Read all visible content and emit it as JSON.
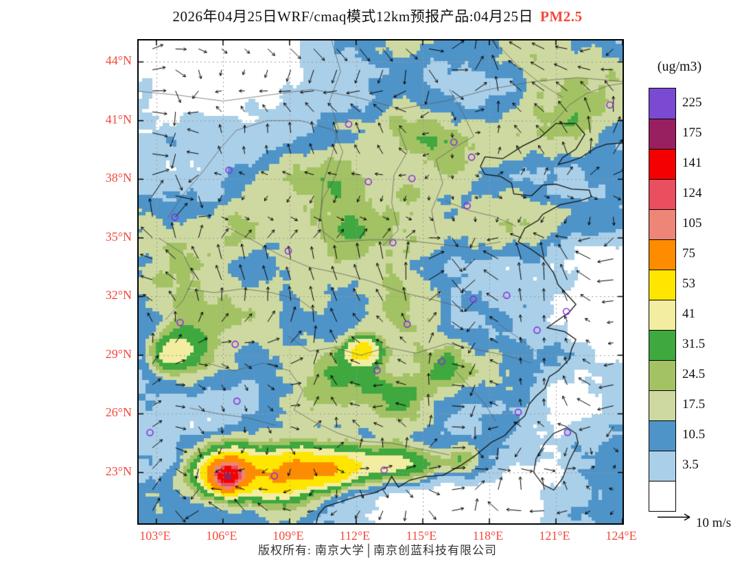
{
  "title": {
    "prefix": "2026年04月25日WRF/cmaq模式12km预报产品:04月25日",
    "species": "PM2.5"
  },
  "colors": {
    "accent_red": "#f4483c",
    "marker": "#8b2be2",
    "coastline": "#111111",
    "border_line": "#555555",
    "gridline": "#999999"
  },
  "legend": {
    "units_label": "(ug/m3)",
    "tick_values": [
      "225",
      "175",
      "141",
      "124",
      "105",
      "75",
      "53",
      "41",
      "31.5",
      "24.5",
      "17.5",
      "10.5",
      "3.5"
    ],
    "band_colors_top_to_bottom": [
      "#7a4bd2",
      "#992060",
      "#f50000",
      "#ea4f5f",
      "#ee8576",
      "#ff8c00",
      "#ffe600",
      "#f2eda0",
      "#3fa83f",
      "#a3c264",
      "#cdd9a0",
      "#4f94c8",
      "#aacfe8",
      "#ffffff"
    ]
  },
  "axes": {
    "lat_tick_labels": [
      "44°N",
      "41°N",
      "38°N",
      "35°N",
      "32°N",
      "29°N",
      "26°N",
      "23°N"
    ],
    "lat_tick_values": [
      44,
      41,
      38,
      35,
      32,
      29,
      26,
      23
    ],
    "lon_tick_labels": [
      "103°E",
      "106°E",
      "109°E",
      "112°E",
      "115°E",
      "118°E",
      "121°E",
      "124°E"
    ],
    "lon_tick_values": [
      103,
      106,
      109,
      112,
      115,
      118,
      121,
      124
    ]
  },
  "wind_legend": {
    "label": "10 m/s"
  },
  "footer": {
    "text": "版权所有: 南京大学│南京创蓝科技有限公司"
  },
  "chart_data": {
    "type": "heatmap",
    "variable": "PM2.5",
    "units": "ug/m3",
    "model": "WRF/cmaq 12km",
    "forecast_date": "2026-04-25",
    "legend_position": "right",
    "lon_range": [
      102.2,
      124.0
    ],
    "lat_range": [
      20.4,
      45.1
    ],
    "levels": [
      3.5,
      10.5,
      17.5,
      24.5,
      31.5,
      41,
      53,
      75,
      105,
      124,
      141,
      175,
      225
    ],
    "reference_vector": {
      "speed": 10,
      "units": "m/s"
    },
    "hotspots": [
      [
        106.2,
        22.8,
        110,
        0.5
      ],
      [
        106.8,
        23.2,
        45,
        0.9
      ],
      [
        105.4,
        23.0,
        35,
        0.8
      ],
      [
        108.1,
        22.4,
        30,
        0.8
      ],
      [
        109.3,
        23.2,
        60,
        0.8
      ],
      [
        110.8,
        23.1,
        45,
        0.7
      ],
      [
        112.0,
        23.4,
        40,
        0.8
      ],
      [
        113.6,
        23.4,
        30,
        0.7
      ],
      [
        115.0,
        23.3,
        22,
        0.7
      ],
      [
        116.8,
        23.6,
        26,
        0.6
      ],
      [
        112.3,
        29.3,
        40,
        0.55
      ],
      [
        111.5,
        27.5,
        16,
        1.2
      ],
      [
        113.8,
        27.0,
        14,
        1.0
      ],
      [
        115.8,
        28.3,
        15,
        0.9
      ],
      [
        104.3,
        29.5,
        20,
        0.9
      ],
      [
        103.4,
        29.0,
        24,
        0.6
      ],
      [
        105.5,
        31.0,
        12,
        1.2
      ],
      [
        112.0,
        34.5,
        10,
        2.2
      ],
      [
        110.0,
        37.0,
        12,
        2.0
      ],
      [
        117.0,
        36.5,
        10,
        2.0
      ],
      [
        113.5,
        31.5,
        8,
        1.8
      ],
      [
        122.5,
        41.5,
        12,
        1.8
      ],
      [
        120.0,
        43.5,
        10,
        1.6
      ],
      [
        116.5,
        39.5,
        12,
        1.2
      ],
      [
        114.8,
        40.6,
        8,
        1.2
      ],
      [
        104.5,
        34.0,
        12,
        1.5
      ],
      [
        103.2,
        33.0,
        10,
        1.2
      ],
      [
        121.0,
        35.8,
        8,
        1.3
      ],
      [
        102.8,
        43.8,
        -16,
        2.8
      ],
      [
        106.5,
        44.5,
        -10,
        2.2
      ],
      [
        123.6,
        33.5,
        -10,
        2.2
      ],
      [
        123.8,
        28.5,
        -12,
        2.5
      ],
      [
        121.5,
        21.8,
        -10,
        2.0
      ],
      [
        117.0,
        20.8,
        -10,
        2.2
      ],
      [
        113.5,
        20.6,
        -8,
        1.8
      ],
      [
        119.8,
        23.2,
        -5,
        1.0
      ]
    ],
    "city_markers": [
      [
        111.66,
        40.82
      ],
      [
        106.27,
        38.47
      ],
      [
        103.83,
        36.06
      ],
      [
        112.55,
        37.87
      ],
      [
        116.4,
        39.9
      ],
      [
        117.2,
        39.13
      ],
      [
        114.51,
        38.04
      ],
      [
        117.0,
        36.65
      ],
      [
        108.94,
        34.34
      ],
      [
        113.65,
        34.76
      ],
      [
        117.28,
        31.86
      ],
      [
        118.78,
        32.06
      ],
      [
        121.47,
        31.23
      ],
      [
        120.15,
        30.28
      ],
      [
        114.3,
        30.58
      ],
      [
        104.07,
        30.67
      ],
      [
        106.55,
        29.56
      ],
      [
        112.94,
        28.23
      ],
      [
        115.86,
        28.68
      ],
      [
        106.63,
        26.65
      ],
      [
        102.71,
        25.04
      ],
      [
        108.32,
        22.82
      ],
      [
        113.26,
        23.13
      ],
      [
        119.3,
        26.08
      ],
      [
        121.52,
        25.05
      ],
      [
        123.43,
        41.8
      ]
    ],
    "map_lines": {
      "coastline": [
        [
          124,
          39.85
        ],
        [
          123.3,
          39.8
        ],
        [
          122.8,
          39.6
        ],
        [
          122.1,
          39.1
        ],
        [
          121.6,
          38.9
        ],
        [
          121.1,
          38.75
        ],
        [
          121.3,
          39.1
        ],
        [
          121.9,
          39.55
        ],
        [
          122.3,
          40.3
        ],
        [
          121.9,
          40.85
        ],
        [
          121.0,
          40.85
        ],
        [
          120.3,
          40.15
        ],
        [
          119.5,
          39.7
        ],
        [
          118.6,
          39.05
        ],
        [
          117.8,
          39.15
        ],
        [
          117.6,
          38.65
        ],
        [
          117.8,
          38.25
        ],
        [
          118.5,
          38.15
        ],
        [
          119.0,
          37.8
        ],
        [
          119.1,
          37.25
        ],
        [
          119.9,
          37.15
        ],
        [
          120.4,
          37.7
        ],
        [
          121.0,
          37.75
        ],
        [
          121.7,
          37.5
        ],
        [
          122.5,
          37.45
        ],
        [
          122.6,
          37.1
        ],
        [
          122.1,
          36.9
        ],
        [
          121.2,
          36.7
        ],
        [
          120.4,
          36.2
        ],
        [
          120.2,
          35.9
        ],
        [
          119.6,
          35.5
        ],
        [
          119.3,
          34.8
        ],
        [
          119.9,
          34.4
        ],
        [
          120.4,
          34.0
        ],
        [
          120.9,
          33.2
        ],
        [
          121.1,
          32.6
        ],
        [
          121.5,
          32.1
        ],
        [
          121.9,
          31.6
        ],
        [
          121.6,
          31.2
        ],
        [
          121.1,
          30.8
        ],
        [
          120.6,
          30.4
        ],
        [
          121.4,
          30.2
        ],
        [
          121.9,
          29.8
        ],
        [
          121.7,
          29.3
        ],
        [
          121.6,
          28.8
        ],
        [
          121.1,
          28.2
        ],
        [
          120.7,
          27.9
        ],
        [
          120.5,
          27.3
        ],
        [
          120.1,
          26.9
        ],
        [
          119.8,
          26.5
        ],
        [
          119.6,
          25.9
        ],
        [
          119.1,
          25.4
        ],
        [
          118.7,
          24.9
        ],
        [
          118.1,
          24.55
        ],
        [
          117.4,
          23.9
        ],
        [
          116.7,
          23.35
        ],
        [
          115.9,
          22.85
        ],
        [
          115.1,
          22.8
        ],
        [
          114.4,
          22.6
        ],
        [
          113.9,
          22.25
        ],
        [
          113.6,
          22.8
        ],
        [
          113.3,
          22.2
        ],
        [
          112.8,
          21.95
        ],
        [
          112.1,
          21.8
        ],
        [
          111.3,
          21.5
        ],
        [
          110.6,
          21.25
        ],
        [
          110.3,
          20.85
        ],
        [
          110.2,
          20.4
        ]
      ],
      "islands": [
        [
          [
            121.9,
            25.0
          ],
          [
            121.5,
            25.3
          ],
          [
            120.9,
            25.0
          ],
          [
            120.5,
            24.5
          ],
          [
            120.1,
            23.7
          ],
          [
            120.0,
            23.0
          ],
          [
            120.4,
            22.4
          ],
          [
            120.9,
            22.1
          ],
          [
            121.3,
            22.7
          ],
          [
            121.6,
            23.6
          ],
          [
            122.0,
            24.5
          ],
          [
            121.9,
            25.0
          ]
        ]
      ],
      "borders": [
        [
          [
            102.2,
            42.5
          ],
          [
            104,
            42.3
          ],
          [
            106,
            42.0
          ],
          [
            108,
            42.3
          ],
          [
            110,
            42.6
          ],
          [
            112,
            42.2
          ],
          [
            114,
            41.6
          ],
          [
            116,
            42.0
          ],
          [
            118,
            42.6
          ],
          [
            120,
            43.0
          ],
          [
            122,
            43.2
          ],
          [
            124,
            43.0
          ]
        ],
        [
          [
            110.9,
            45.1
          ],
          [
            111.3,
            43.5
          ],
          [
            110.8,
            42.0
          ],
          [
            111.2,
            40.6
          ],
          [
            110.9,
            39.2
          ],
          [
            110.5,
            37.8
          ],
          [
            110.4,
            36.2
          ],
          [
            110.6,
            34.8
          ]
        ],
        [
          [
            113.9,
            40.6
          ],
          [
            114.3,
            39.4
          ],
          [
            113.7,
            38.2
          ],
          [
            113.6,
            36.8
          ],
          [
            113.9,
            35.4
          ],
          [
            113.2,
            34.6
          ]
        ],
        [
          [
            116.2,
            42.6
          ],
          [
            116.8,
            41.4
          ],
          [
            117.3,
            40.2
          ],
          [
            116.4,
            39.6
          ],
          [
            115.6,
            39.0
          ],
          [
            115.9,
            37.8
          ],
          [
            115.4,
            36.4
          ],
          [
            115.6,
            35.2
          ]
        ],
        [
          [
            106.1,
            35.6
          ],
          [
            107.3,
            34.9
          ],
          [
            108.6,
            34.1
          ],
          [
            109.9,
            33.5
          ],
          [
            111.2,
            33.2
          ],
          [
            112.6,
            32.8
          ],
          [
            114.1,
            32.2
          ],
          [
            115.6,
            31.8
          ],
          [
            116.9,
            31.4
          ]
        ],
        [
          [
            104.4,
            32.4
          ],
          [
            105.6,
            32.2
          ],
          [
            106.9,
            32.4
          ],
          [
            108.2,
            32.2
          ],
          [
            109.5,
            31.8
          ],
          [
            110.2,
            31.2
          ]
        ],
        [
          [
            108.9,
            30.0
          ],
          [
            109.9,
            29.2
          ],
          [
            111.0,
            29.4
          ],
          [
            112.2,
            29.0
          ],
          [
            113.4,
            29.4
          ],
          [
            114.7,
            29.1
          ],
          [
            116.1,
            29.6
          ],
          [
            117.4,
            29.3
          ],
          [
            118.7,
            29.0
          ],
          [
            119.9,
            28.6
          ]
        ],
        [
          [
            105.3,
            28.6
          ],
          [
            106.5,
            28.2
          ],
          [
            107.8,
            28.6
          ],
          [
            109.0,
            28.2
          ],
          [
            109.6,
            27.2
          ],
          [
            109.2,
            26.2
          ],
          [
            110.1,
            25.6
          ],
          [
            111.2,
            25.0
          ],
          [
            112.3,
            24.6
          ],
          [
            113.6,
            24.5
          ],
          [
            114.9,
            24.2
          ],
          [
            116.2,
            23.9
          ]
        ],
        [
          [
            103.1,
            35.0
          ],
          [
            104.2,
            34.2
          ],
          [
            104.7,
            33.0
          ],
          [
            104.2,
            31.8
          ],
          [
            103.4,
            30.8
          ]
        ],
        [
          [
            120.9,
            40.9
          ],
          [
            121.6,
            41.8
          ],
          [
            122.4,
            42.4
          ],
          [
            123.4,
            42.8
          ],
          [
            124,
            42.9
          ]
        ],
        [
          [
            118.2,
            45.1
          ],
          [
            119.2,
            43.9
          ],
          [
            120.3,
            42.9
          ],
          [
            121.3,
            42.2
          ]
        ],
        [
          [
            116.0,
            36.9
          ],
          [
            117.1,
            36.4
          ],
          [
            118.2,
            36.1
          ],
          [
            119.2,
            35.6
          ]
        ],
        [
          [
            104.5,
            26.3
          ],
          [
            105.8,
            26.0
          ],
          [
            107.1,
            25.8
          ],
          [
            108.4,
            25.4
          ]
        ],
        [
          [
            116.4,
            28.3
          ],
          [
            117.1,
            27.4
          ],
          [
            117.8,
            26.5
          ],
          [
            118.3,
            25.6
          ]
        ],
        [
          [
            118.4,
            30.6
          ],
          [
            119.3,
            29.9
          ],
          [
            120.1,
            29.2
          ]
        ],
        [
          [
            103.5,
            36.0
          ],
          [
            104.2,
            37.2
          ],
          [
            105.1,
            38.4
          ],
          [
            105.9,
            39.6
          ],
          [
            106.6,
            40.5
          ],
          [
            108.0,
            41.0
          ],
          [
            109.5,
            41.0
          ],
          [
            111.0,
            40.5
          ],
          [
            111.4,
            39.4
          ],
          [
            111.0,
            38.0
          ],
          [
            110.5,
            37.0
          ],
          [
            110.3,
            35.5
          ],
          [
            111.1,
            34.8
          ],
          [
            112.6,
            34.9
          ],
          [
            114.1,
            34.9
          ],
          [
            115.6,
            34.7
          ],
          [
            117.1,
            34.5
          ],
          [
            118.5,
            34.8
          ]
        ]
      ]
    }
  }
}
